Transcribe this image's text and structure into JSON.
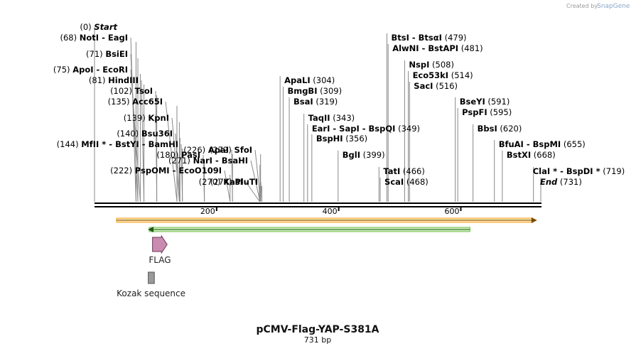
{
  "brand": {
    "created_by": "Created by",
    "app": "SnapGene"
  },
  "sequence": {
    "name": "pCMV-Flag-YAP-S381A",
    "length_label": "731 bp",
    "length_bp": 731
  },
  "ruler_ticks": [
    {
      "pos": 200,
      "label": "200"
    },
    {
      "pos": 400,
      "label": "400"
    },
    {
      "pos": 600,
      "label": "600"
    }
  ],
  "cut_sites": [
    {
      "side": "L",
      "names": [
        "Start"
      ],
      "pos_label": "(0)",
      "bp": 0,
      "italic": true
    },
    {
      "side": "L",
      "names": [
        "NotI",
        "EagI"
      ],
      "pos_label": "(68)",
      "bp": 68
    },
    {
      "side": "L",
      "names": [
        "BsiEI"
      ],
      "pos_label": "(71)",
      "bp": 71
    },
    {
      "side": "L",
      "names": [
        "ApoI",
        "EcoRI"
      ],
      "pos_label": "(75)",
      "bp": 75
    },
    {
      "side": "L",
      "names": [
        "HindIII"
      ],
      "pos_label": "(81)",
      "bp": 81
    },
    {
      "side": "L",
      "names": [
        "TsoI"
      ],
      "pos_label": "(102)",
      "bp": 102
    },
    {
      "side": "L",
      "names": [
        "Acc65I"
      ],
      "pos_label": "(135)",
      "bp": 135
    },
    {
      "side": "L",
      "names": [
        "KpnI"
      ],
      "pos_label": "(139)",
      "bp": 139
    },
    {
      "side": "L",
      "names": [
        "Bsu36I"
      ],
      "pos_label": "(140)",
      "bp": 140
    },
    {
      "side": "L",
      "names": [
        "MfII *",
        "BstYI",
        "BamHI"
      ],
      "pos_label": "(144)",
      "bp": 144
    },
    {
      "side": "L",
      "names": [
        "PasI"
      ],
      "pos_label": "(180)",
      "bp": 180
    },
    {
      "side": "L",
      "names": [
        "PspOMI",
        "EcoO109I"
      ],
      "pos_label": "(222)",
      "bp": 222
    },
    {
      "side": "L",
      "names": [
        "ApaI"
      ],
      "pos_label": "(226)",
      "bp": 226
    },
    {
      "side": "L",
      "names": [
        "NarI",
        "BsaHI"
      ],
      "pos_label": "(271)",
      "bp": 271
    },
    {
      "side": "L",
      "names": [
        "KasI"
      ],
      "pos_label": "(270)",
      "bp": 270
    },
    {
      "side": "L",
      "names": [
        "PluTI"
      ],
      "pos_label": "(274)",
      "bp": 274
    },
    {
      "side": "L",
      "names": [
        "SfoI"
      ],
      "pos_label": "(272)",
      "bp": 272
    },
    {
      "side": "R",
      "names": [
        "ApaLI"
      ],
      "pos_label": "(304)",
      "bp": 304
    },
    {
      "side": "R",
      "names": [
        "BmgBI"
      ],
      "pos_label": "(309)",
      "bp": 309
    },
    {
      "side": "R",
      "names": [
        "BsaI"
      ],
      "pos_label": "(319)",
      "bp": 319
    },
    {
      "side": "R",
      "names": [
        "TaqII"
      ],
      "pos_label": "(343)",
      "bp": 343
    },
    {
      "side": "R",
      "names": [
        "EarI",
        "SapI",
        "BspQI"
      ],
      "pos_label": "(349)",
      "bp": 349
    },
    {
      "side": "R",
      "names": [
        "BspHI"
      ],
      "pos_label": "(356)",
      "bp": 356
    },
    {
      "side": "R",
      "names": [
        "BglI"
      ],
      "pos_label": "(399)",
      "bp": 399
    },
    {
      "side": "R",
      "names": [
        "TatI"
      ],
      "pos_label": "(466)",
      "bp": 466
    },
    {
      "side": "R",
      "names": [
        "ScaI"
      ],
      "pos_label": "(468)",
      "bp": 468
    },
    {
      "side": "R",
      "names": [
        "BtsI",
        "BtsαI"
      ],
      "pos_label": "(479)",
      "bp": 479
    },
    {
      "side": "R",
      "names": [
        "AlwNI",
        "BstAPI"
      ],
      "pos_label": "(481)",
      "bp": 481
    },
    {
      "side": "R",
      "names": [
        "NspI"
      ],
      "pos_label": "(508)",
      "bp": 508
    },
    {
      "side": "R",
      "names": [
        "Eco53kI"
      ],
      "pos_label": "(514)",
      "bp": 514
    },
    {
      "side": "R",
      "names": [
        "SacI"
      ],
      "pos_label": "(516)",
      "bp": 516
    },
    {
      "side": "R",
      "names": [
        "BseYI"
      ],
      "pos_label": "(591)",
      "bp": 591
    },
    {
      "side": "R",
      "names": [
        "PspFI"
      ],
      "pos_label": "(595)",
      "bp": 595
    },
    {
      "side": "R",
      "names": [
        "BbsI"
      ],
      "pos_label": "(620)",
      "bp": 620
    },
    {
      "side": "R",
      "names": [
        "BfuAI",
        "BspMI"
      ],
      "pos_label": "(655)",
      "bp": 655
    },
    {
      "side": "R",
      "names": [
        "BstXI"
      ],
      "pos_label": "(668)",
      "bp": 668
    },
    {
      "side": "R",
      "names": [
        "ClaI *",
        "BspDI *"
      ],
      "pos_label": "(719)",
      "bp": 719
    },
    {
      "side": "R",
      "names": [
        "End"
      ],
      "pos_label": "(731)",
      "bp": 731,
      "italic": true
    }
  ],
  "features": [
    {
      "name": "orange-feature",
      "start": 36,
      "end": 725,
      "direction": "forward",
      "color": "#f5a623",
      "label": ""
    },
    {
      "name": "green-feature",
      "start": 85,
      "end": 615,
      "direction": "reverse",
      "color": "#6cc04a",
      "label": ""
    },
    {
      "name": "FLAG",
      "start": 95,
      "end": 119,
      "direction": "forward",
      "color": "#c98bb0",
      "label": "FLAG"
    },
    {
      "name": "Kozak sequence",
      "start": 88,
      "end": 98,
      "direction": "none",
      "color": "#9a9a9a",
      "label": "Kozak sequence"
    }
  ],
  "colors": {
    "backbone": "#000000",
    "lead_line": "#888888",
    "accent": "#c98bb0"
  }
}
